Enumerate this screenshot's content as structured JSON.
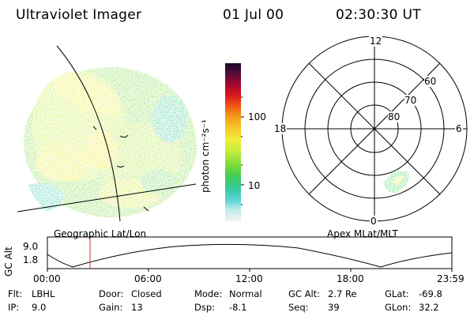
{
  "header": {
    "title": "Ultraviolet Imager",
    "date": "01 Jul 00",
    "time": "02:30:30 UT"
  },
  "left_panel": {
    "caption": "Geographic Lat/Lon"
  },
  "colorbar": {
    "label": "photon cm⁻²s⁻¹",
    "tick_labels": [
      "100",
      "10"
    ],
    "scale": "log",
    "colors": [
      "#1a0a2e",
      "#3a0b3f",
      "#6e0b35",
      "#a00b23",
      "#d41612",
      "#ef5a12",
      "#f7a51c",
      "#f8d737",
      "#e8ef3a",
      "#b6ec3e",
      "#74dd3c",
      "#3ecb67",
      "#35c9b0",
      "#8fe1e3",
      "#dff6f5"
    ]
  },
  "right_panel": {
    "caption": "Apex MLat/MLT",
    "mlt_labels": {
      "top": "12",
      "left": "18",
      "right": "6",
      "bottom": "0"
    },
    "lat_labels": [
      "60",
      "70",
      "80"
    ]
  },
  "timeline": {
    "ylabel": "GC Alt",
    "y_ticks": [
      "9.0",
      "1.8"
    ],
    "x_ticks": [
      "00:00",
      "06:00",
      "12:00",
      "18:00",
      "23:59"
    ],
    "marker_time": "02:30:30",
    "marker_color": "#c0392b"
  },
  "info": {
    "col1": [
      {
        "key": "Flt:",
        "value": "LBHL"
      },
      {
        "key": "IP:",
        "value": "9.0"
      }
    ],
    "col2": [
      {
        "key": "Door:",
        "value": "Closed"
      },
      {
        "key": "Gain:",
        "value": "13"
      }
    ],
    "col3": [
      {
        "key": "Mode:",
        "value": "Normal"
      },
      {
        "key": "Dsp:",
        "value": "-8.1"
      }
    ],
    "col4": [
      {
        "key": "GC Alt:",
        "value": "2.7 Re"
      },
      {
        "key": "Seq:",
        "value": "39"
      }
    ],
    "col5": [
      {
        "key": "GLat:",
        "value": "-69.8"
      },
      {
        "key": "GLon:",
        "value": "32.2"
      }
    ]
  }
}
